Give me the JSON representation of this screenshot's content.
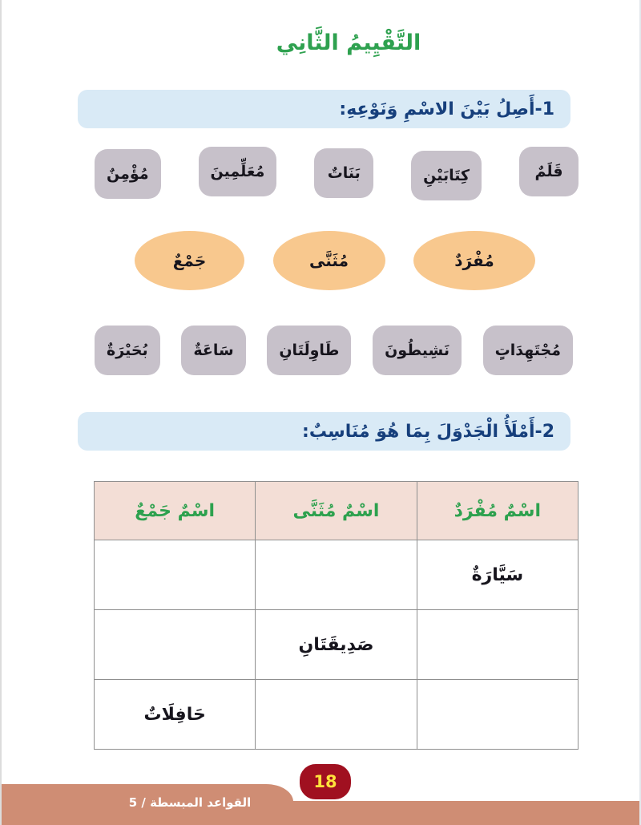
{
  "page": {
    "title": "التَّقْيِيمُ الثَّانِي",
    "page_number": "18",
    "footer": "القواعد المبسطة / 5"
  },
  "section1": {
    "heading": "1-أَصِلُ بَيْنَ الاسْمِ وَنَوْعِهِ:",
    "top_words": [
      "قَلَمٌ",
      "كِتَابَيْنِ",
      "بَنَاتٌ",
      "مُعَلِّمِينَ",
      "مُؤْمِنٌ"
    ],
    "categories": [
      "مُفْرَدٌ",
      "مُثَنَّى",
      "جَمْعٌ"
    ],
    "bottom_words": [
      "مُجْتَهِدَاتٍ",
      "نَشِيطُونَ",
      "طَاوِلَتَانِ",
      "سَاعَةٌ",
      "بُحَيْرَةٌ"
    ]
  },
  "section2": {
    "heading": "2-أَمْلَأُ الْجَدْوَلَ بِمَا هُوَ مُنَاسِبٌ:",
    "table": {
      "headers": [
        "اسْمٌ مُفْرَدٌ",
        "اسْمٌ مُثَنَّى",
        "اسْمٌ جَمْعٌ"
      ],
      "rows": [
        [
          "سَيَّارَةٌ",
          "",
          ""
        ],
        [
          "",
          "صَدِيقَتَانِ",
          ""
        ],
        [
          "",
          "",
          "حَافِلَاتٌ"
        ]
      ]
    }
  },
  "colors": {
    "title_green": "#2ea14f",
    "section_bar_bg": "#d9eaf6",
    "section_text_navy": "#163f7c",
    "word_card_gray": "#c7c1ca",
    "category_orange": "#f8c88e",
    "table_header_bg": "#f3ded6",
    "table_header_green": "#2da14e",
    "badge_red": "#a01020",
    "badge_yellow": "#ffe23c",
    "footer_salmon": "#cf8d74"
  }
}
